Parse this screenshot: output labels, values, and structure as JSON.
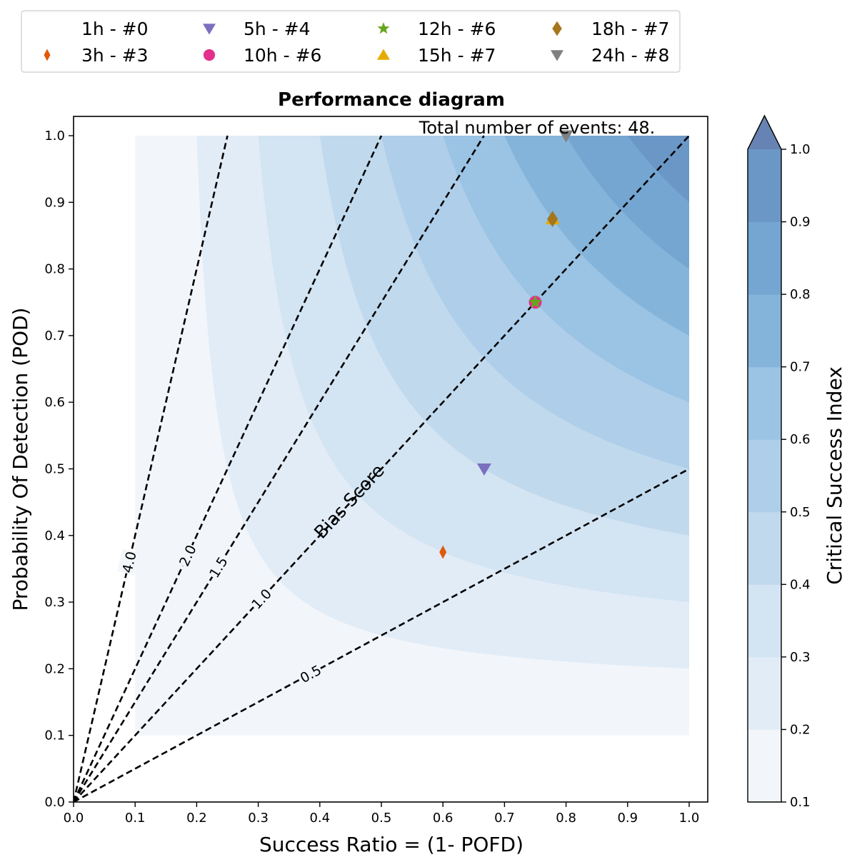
{
  "chart_data": {
    "type": "scatter",
    "title": "Performance diagram",
    "xlabel": "Success Ratio = (1- POFD)",
    "ylabel": "Probability Of Detection (POD)",
    "xlim": [
      0.0,
      1.0
    ],
    "ylim": [
      0.0,
      1.0
    ],
    "xticks": [
      "0.0",
      "0.1",
      "0.2",
      "0.3",
      "0.4",
      "0.5",
      "0.6",
      "0.7",
      "0.8",
      "0.9",
      "1.0"
    ],
    "yticks": [
      "0.0",
      "0.1",
      "0.2",
      "0.3",
      "0.4",
      "0.5",
      "0.6",
      "0.7",
      "0.8",
      "0.9",
      "1.0"
    ],
    "annotation": "Total number of events: 48.",
    "bias_label": "Bias Score",
    "bias_lines": [
      {
        "value": 4.0,
        "label": "4.0"
      },
      {
        "value": 2.0,
        "label": "2.0"
      },
      {
        "value": 1.5,
        "label": "1.5"
      },
      {
        "value": 1.0,
        "label": "1.0"
      },
      {
        "value": 0.5,
        "label": "0.5"
      }
    ],
    "csi_colorbar": {
      "label": "Critical Success Index",
      "levels": [
        0.1,
        0.2,
        0.3,
        0.4,
        0.5,
        0.6,
        0.7,
        0.8,
        0.9,
        1.0
      ],
      "ticks": [
        "0.1",
        "0.2",
        "0.3",
        "0.4",
        "0.5",
        "0.6",
        "0.7",
        "0.8",
        "0.9",
        "1.0"
      ],
      "colors": [
        "#f2f6fb",
        "#e2ecf7",
        "#d3e4f3",
        "#c1d9ec",
        "#aeceea",
        "#9ac3e4",
        "#85b4da",
        "#74a6d1",
        "#6b97c6",
        "#6783b3"
      ]
    },
    "legend_position": "top",
    "series": [
      {
        "name": "1h - #0",
        "marker": "none",
        "color": "#ffffff",
        "points": []
      },
      {
        "name": "3h - #3",
        "marker": "thin-diamond",
        "color": "#e05a0c",
        "points": [
          {
            "x": 0.6,
            "y": 0.375
          }
        ]
      },
      {
        "name": "5h - #4",
        "marker": "triangle-down",
        "color": "#7b6fc0",
        "points": [
          {
            "x": 0.667,
            "y": 0.5
          }
        ]
      },
      {
        "name": "10h - #6",
        "marker": "circle",
        "color": "#e2318c",
        "points": [
          {
            "x": 0.75,
            "y": 0.75
          }
        ]
      },
      {
        "name": "12h - #6",
        "marker": "star",
        "color": "#66a61e",
        "points": [
          {
            "x": 0.75,
            "y": 0.75
          }
        ]
      },
      {
        "name": "15h - #7",
        "marker": "triangle-up",
        "color": "#e6ab02",
        "points": [
          {
            "x": 0.778,
            "y": 0.875
          }
        ]
      },
      {
        "name": "18h - #7",
        "marker": "diamond",
        "color": "#a6761d",
        "points": [
          {
            "x": 0.778,
            "y": 0.875
          }
        ]
      },
      {
        "name": "24h - #8",
        "marker": "triangle-down",
        "color": "#808080",
        "points": [
          {
            "x": 0.8,
            "y": 1.0
          }
        ]
      }
    ]
  }
}
